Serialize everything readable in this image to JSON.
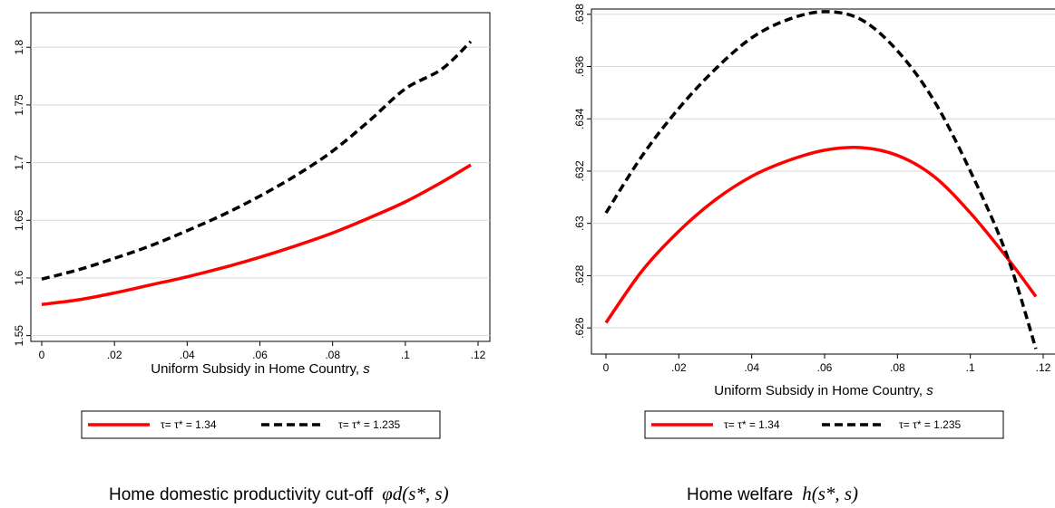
{
  "chart_data": [
    {
      "type": "line",
      "caption": "Home domestic productivity cut-off",
      "caption_math": "φd(s*, s)",
      "xlabel": "Uniform Subsidy in Home Country,",
      "xlabel_var": "s",
      "xlim": [
        0,
        0.12
      ],
      "ylim": [
        1.545,
        1.83
      ],
      "xticks": [
        0,
        0.02,
        0.04,
        0.06,
        0.08,
        0.1,
        0.12
      ],
      "xtick_labels": [
        "0",
        ".02",
        ".04",
        ".06",
        ".08",
        ".1",
        ".12"
      ],
      "yticks": [
        1.55,
        1.6,
        1.65,
        1.7,
        1.75,
        1.8
      ],
      "ytick_labels": [
        "1.55",
        "1.6",
        "1.65",
        "1.7",
        "1.75",
        "1.8"
      ],
      "grid": "horizontal",
      "legend_position": "bottom",
      "x": [
        0,
        0.01,
        0.02,
        0.03,
        0.04,
        0.05,
        0.06,
        0.07,
        0.08,
        0.09,
        0.1,
        0.11,
        0.118
      ],
      "series": [
        {
          "name": "τ= τ* = 1.34",
          "color": "#ff0000",
          "style": "solid",
          "values": [
            1.577,
            1.581,
            1.587,
            1.594,
            1.601,
            1.609,
            1.618,
            1.628,
            1.639,
            1.652,
            1.666,
            1.683,
            1.698
          ]
        },
        {
          "name": "τ= τ* = 1.235",
          "color": "#000000",
          "style": "dashed",
          "values": [
            1.599,
            1.607,
            1.617,
            1.628,
            1.641,
            1.655,
            1.671,
            1.689,
            1.71,
            1.736,
            1.764,
            1.781,
            1.805
          ]
        }
      ]
    },
    {
      "type": "line",
      "caption": "Home welfare",
      "caption_math": "h(s*, s)",
      "xlabel": "Uniform Subsidy in Home Country,",
      "xlabel_var": "s",
      "xlim": [
        0,
        0.12
      ],
      "ylim": [
        0.625,
        0.6382
      ],
      "xticks": [
        0,
        0.02,
        0.04,
        0.06,
        0.08,
        0.1,
        0.12
      ],
      "xtick_labels": [
        "0",
        ".02",
        ".04",
        ".06",
        ".08",
        ".1",
        ".12"
      ],
      "yticks": [
        0.626,
        0.628,
        0.63,
        0.632,
        0.634,
        0.636,
        0.638
      ],
      "ytick_labels": [
        ".626",
        ".628",
        ".63",
        ".632",
        ".634",
        ".636",
        ".638"
      ],
      "grid": "horizontal",
      "legend_position": "bottom",
      "x": [
        0,
        0.01,
        0.02,
        0.03,
        0.04,
        0.05,
        0.06,
        0.07,
        0.08,
        0.09,
        0.1,
        0.11,
        0.118
      ],
      "series": [
        {
          "name": "τ= τ* = 1.34",
          "color": "#ff0000",
          "style": "solid",
          "values": [
            0.6262,
            0.6282,
            0.6297,
            0.6309,
            0.6318,
            0.6324,
            0.6328,
            0.6329,
            0.6326,
            0.6318,
            0.6304,
            0.6287,
            0.6272
          ]
        },
        {
          "name": "τ= τ* = 1.235",
          "color": "#000000",
          "style": "dashed",
          "values": [
            0.6304,
            0.6326,
            0.6344,
            0.6359,
            0.6371,
            0.6378,
            0.6381,
            0.6378,
            0.6366,
            0.6347,
            0.632,
            0.6288,
            0.6252
          ]
        }
      ]
    }
  ]
}
